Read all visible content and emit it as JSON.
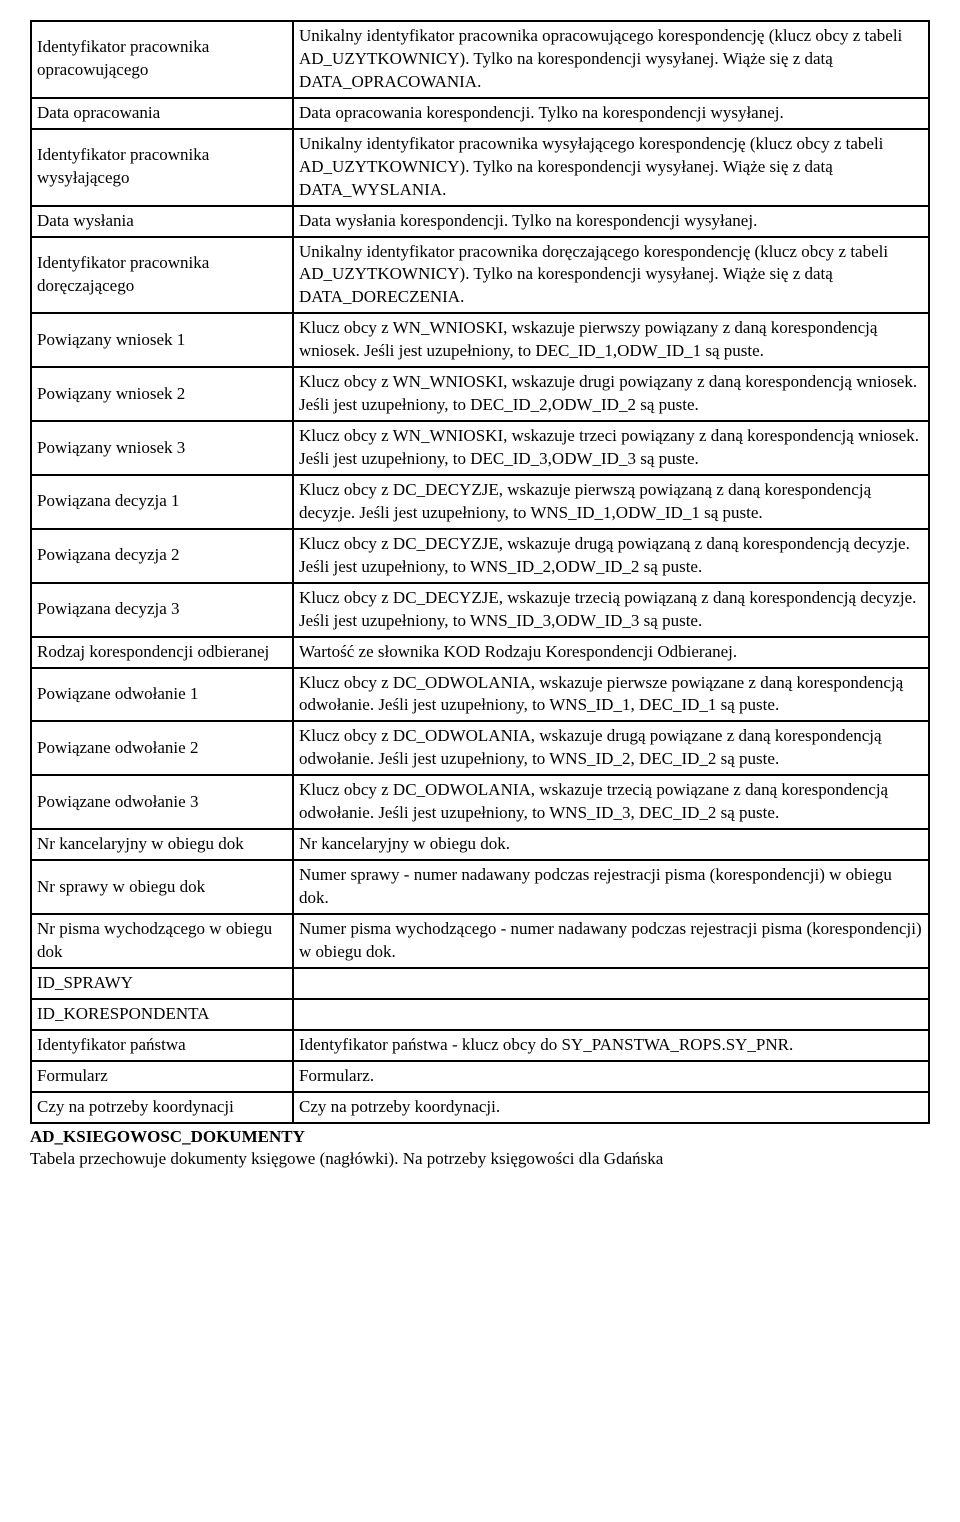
{
  "table": {
    "rows": [
      {
        "col1": "Identyfikator pracownika opracowującego",
        "col2": "Unikalny identyfikator pracownika opracowującego korespondencję (klucz obcy z tabeli AD_UZYTKOWNICY). Tylko na korespondencji wysyłanej. Wiąże się z datą DATA_OPRACOWANIA."
      },
      {
        "col1": "Data opracowania",
        "col2": "Data opracowania korespondencji. Tylko na korespondencji wysyłanej."
      },
      {
        "col1": "Identyfikator pracownika wysyłającego",
        "col2": "Unikalny identyfikator pracownika wysyłającego korespondencję (klucz obcy z tabeli AD_UZYTKOWNICY). Tylko na korespondencji wysyłanej. Wiąże się z datą DATA_WYSLANIA."
      },
      {
        "col1": "Data wysłania",
        "col2": "Data wysłania korespondencji. Tylko na korespondencji wysyłanej."
      },
      {
        "col1": "Identyfikator pracownika doręczającego",
        "col2": "Unikalny identyfikator pracownika doręczającego korespondencję (klucz obcy z tabeli AD_UZYTKOWNICY). Tylko na korespondencji wysyłanej. Wiąże się z datą DATA_DORECZENIA."
      },
      {
        "col1": "Powiązany wniosek 1",
        "col2": "Klucz obcy z WN_WNIOSKI, wskazuje pierwszy powiązany z daną korespondencją wniosek. Jeśli jest uzupełniony, to DEC_ID_1,ODW_ID_1 są puste."
      },
      {
        "col1": "Powiązany wniosek 2",
        "col2": "Klucz obcy z WN_WNIOSKI, wskazuje drugi powiązany z daną korespondencją wniosek. Jeśli jest uzupełniony, to DEC_ID_2,ODW_ID_2 są puste."
      },
      {
        "col1": "Powiązany wniosek 3",
        "col2": "Klucz obcy z WN_WNIOSKI, wskazuje trzeci powiązany z daną korespondencją wniosek. Jeśli jest uzupełniony, to DEC_ID_3,ODW_ID_3 są puste."
      },
      {
        "col1": "Powiązana decyzja 1",
        "col2": "Klucz obcy z DC_DECYZJE, wskazuje pierwszą powiązaną z daną korespondencją decyzje. Jeśli jest uzupełniony, to WNS_ID_1,ODW_ID_1 są puste."
      },
      {
        "col1": "Powiązana decyzja 2",
        "col2": "Klucz obcy z DC_DECYZJE, wskazuje drugą powiązaną z daną korespondencją decyzje. Jeśli jest uzupełniony, to WNS_ID_2,ODW_ID_2 są puste."
      },
      {
        "col1": "Powiązana decyzja 3",
        "col2": "Klucz obcy z DC_DECYZJE, wskazuje trzecią powiązaną z daną korespondencją decyzje. Jeśli jest uzupełniony, to WNS_ID_3,ODW_ID_3 są puste."
      },
      {
        "col1": "Rodzaj korespondencji odbieranej",
        "col2": "Wartość ze słownika KOD Rodzaju Korespondencji Odbieranej."
      },
      {
        "col1": "Powiązane odwołanie 1",
        "col2": "Klucz obcy z DC_ODWOLANIA, wskazuje pierwsze powiązane z daną korespondencją odwołanie. Jeśli jest uzupełniony, to WNS_ID_1, DEC_ID_1 są puste."
      },
      {
        "col1": "Powiązane odwołanie 2",
        "col2": "Klucz obcy z DC_ODWOLANIA, wskazuje drugą powiązane z daną korespondencją odwołanie. Jeśli jest uzupełniony, to WNS_ID_2, DEC_ID_2 są puste."
      },
      {
        "col1": "Powiązane odwołanie 3",
        "col2": "Klucz obcy z DC_ODWOLANIA, wskazuje trzecią powiązane z daną korespondencją odwołanie. Jeśli jest uzupełniony, to WNS_ID_3, DEC_ID_2 są puste."
      },
      {
        "col1": "Nr kancelaryjny w obiegu dok",
        "col2": "Nr kancelaryjny w obiegu dok."
      },
      {
        "col1": "Nr sprawy w obiegu dok",
        "col2": "Numer sprawy - numer nadawany podczas rejestracji pisma (korespondencji) w obiegu dok."
      },
      {
        "col1": "Nr pisma wychodzącego w obiegu dok",
        "col2": "Numer pisma wychodzącego - numer nadawany podczas rejestracji pisma (korespondencji) w obiegu dok."
      },
      {
        "col1": "ID_SPRAWY",
        "col2": ""
      },
      {
        "col1": "ID_KORESPONDENTA",
        "col2": ""
      },
      {
        "col1": "Identyfikator państwa",
        "col2": "Identyfikator państwa - klucz obcy do SY_PANSTWA_ROPS.SY_PNR."
      },
      {
        "col1": "Formularz",
        "col2": "Formularz."
      },
      {
        "col1": "Czy na potrzeby koordynacji",
        "col2": "Czy na potrzeby koordynacji."
      }
    ]
  },
  "footer": {
    "heading": "AD_KSIEGOWOSC_DOKUMENTY",
    "text": "Tabela przechowuje dokumenty księgowe (nagłówki). Na potrzeby księgowości dla Gdańska"
  }
}
